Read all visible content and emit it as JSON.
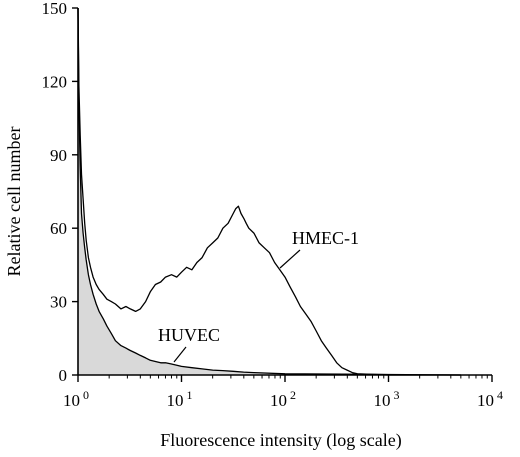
{
  "chart_data": {
    "type": "area",
    "title": "",
    "xlabel": "Fluorescence intensity (log scale)",
    "ylabel": "Relative cell number",
    "x_scale": "log",
    "xlim": [
      1,
      10000
    ],
    "ylim": [
      0,
      150
    ],
    "x_ticks": [
      {
        "value": 1,
        "base": "10",
        "exp": "0"
      },
      {
        "value": 10,
        "base": "10",
        "exp": "1"
      },
      {
        "value": 100,
        "base": "10",
        "exp": "2"
      },
      {
        "value": 1000,
        "base": "10",
        "exp": "3"
      },
      {
        "value": 10000,
        "base": "10",
        "exp": "4"
      }
    ],
    "y_ticks": [
      "0",
      "30",
      "60",
      "90",
      "120",
      "150"
    ],
    "y_tick_values": [
      0,
      30,
      60,
      90,
      120,
      150
    ],
    "grid": false,
    "legend": "none",
    "series": [
      {
        "name": "HMEC-1",
        "fill": "none",
        "x": [
          1.0,
          1.02,
          1.05,
          1.08,
          1.12,
          1.16,
          1.2,
          1.26,
          1.32,
          1.4,
          1.5,
          1.6,
          1.75,
          1.9,
          2.1,
          2.3,
          2.6,
          2.9,
          3.2,
          3.6,
          4.0,
          4.5,
          5.0,
          5.6,
          6.3,
          7.0,
          8.0,
          9.0,
          10.0,
          11.2,
          12.6,
          14.1,
          15.8,
          17.8,
          20.0,
          22.4,
          25.1,
          28.2,
          31.6,
          33.5,
          35.5,
          37.6,
          40.0,
          42.2,
          44.7,
          50.1,
          56.2,
          63.1,
          70.8,
          79.4,
          89.1,
          100,
          112,
          126,
          141,
          158,
          178,
          200,
          224,
          251,
          282,
          316,
          355,
          398,
          447,
          501,
          1000,
          5000
        ],
        "y": [
          150,
          118,
          98,
          82,
          72,
          62,
          55,
          48,
          44,
          40,
          37,
          35,
          33,
          31,
          30,
          29,
          27,
          28,
          27,
          26,
          27,
          30,
          34,
          37,
          38,
          40,
          41,
          40,
          42,
          44,
          43,
          46,
          48,
          52,
          54,
          56,
          60,
          62,
          66,
          68,
          69,
          66,
          64,
          62,
          60,
          58,
          54,
          52,
          50,
          46,
          43,
          40,
          36,
          32,
          28,
          25,
          22,
          18,
          14,
          11,
          8,
          5,
          3,
          2,
          1,
          0.5,
          0,
          0
        ]
      },
      {
        "name": "HUVEC",
        "fill": "#d9d9d9",
        "x": [
          1.0,
          1.02,
          1.05,
          1.08,
          1.12,
          1.16,
          1.2,
          1.26,
          1.32,
          1.4,
          1.5,
          1.6,
          1.75,
          1.9,
          2.1,
          2.3,
          2.6,
          2.9,
          3.2,
          3.6,
          4.0,
          4.5,
          5.0,
          5.6,
          6.3,
          7.0,
          8.0,
          9.0,
          10.0,
          12.6,
          15.8,
          20.0,
          25.1,
          31.6,
          39.8,
          50.1,
          63.1,
          100,
          1000,
          5000
        ],
        "y": [
          150,
          110,
          85,
          66,
          58,
          52,
          47,
          41,
          37,
          33,
          29,
          26,
          23,
          20,
          17,
          14,
          12,
          11,
          10,
          9,
          8,
          7,
          6,
          5.5,
          5,
          5,
          4.5,
          4,
          3.5,
          3,
          2.5,
          2,
          1.8,
          1.5,
          1.2,
          1,
          0.8,
          0.5,
          0.2,
          0
        ]
      }
    ],
    "annotations": [
      {
        "text": "HMEC-1",
        "target_x": 80,
        "target_y": 36
      },
      {
        "text": "HUVEC",
        "target_x": 7,
        "target_y": 5
      }
    ]
  }
}
